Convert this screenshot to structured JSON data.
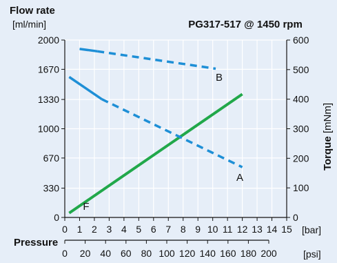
{
  "chart_data": {
    "type": "line",
    "title": "PG317-517 @ 1450 rpm",
    "y_left": {
      "title": "Flow rate",
      "unit": "[ml/min]",
      "ticks": [
        "0",
        "330",
        "670",
        "1000",
        "1330",
        "1670",
        "2000"
      ],
      "range": [
        0,
        2000
      ]
    },
    "y_right": {
      "title": "Torque",
      "unit": "[mNm]",
      "ticks": [
        "0",
        "100",
        "200",
        "300",
        "400",
        "500",
        "600"
      ],
      "range": [
        0,
        600
      ]
    },
    "x_bar": {
      "unit": "[bar]",
      "ticks": [
        "0",
        "1",
        "2",
        "3",
        "4",
        "5",
        "6",
        "7",
        "8",
        "9",
        "10",
        "11",
        "12",
        "13",
        "14",
        "15"
      ],
      "range": [
        0,
        15
      ]
    },
    "x_psi": {
      "title": "Pressure",
      "unit": "[psi]",
      "ticks": [
        "0",
        "20",
        "40",
        "60",
        "80",
        "100",
        "120",
        "140",
        "160",
        "180",
        "200"
      ],
      "range": [
        0,
        200
      ]
    },
    "grid": true,
    "series": [
      {
        "name": "F",
        "axis": "left",
        "color": "#21a84a",
        "style": "solid",
        "points": [
          [
            0.3,
            50
          ],
          [
            12.0,
            1390
          ]
        ]
      },
      {
        "name": "A",
        "axis": "right",
        "color": "#1e8fd6",
        "style": "solid-then-dashed",
        "solid": [
          [
            0.3,
            475
          ],
          [
            2.5,
            400
          ]
        ],
        "dashed": [
          [
            2.5,
            400
          ],
          [
            12.0,
            170
          ]
        ]
      },
      {
        "name": "B",
        "axis": "right",
        "color": "#1e8fd6",
        "style": "solid-then-dashed",
        "solid": [
          [
            1.0,
            570
          ],
          [
            2.2,
            562
          ]
        ],
        "dashed": [
          [
            2.2,
            562
          ],
          [
            10.2,
            503
          ]
        ]
      }
    ]
  }
}
